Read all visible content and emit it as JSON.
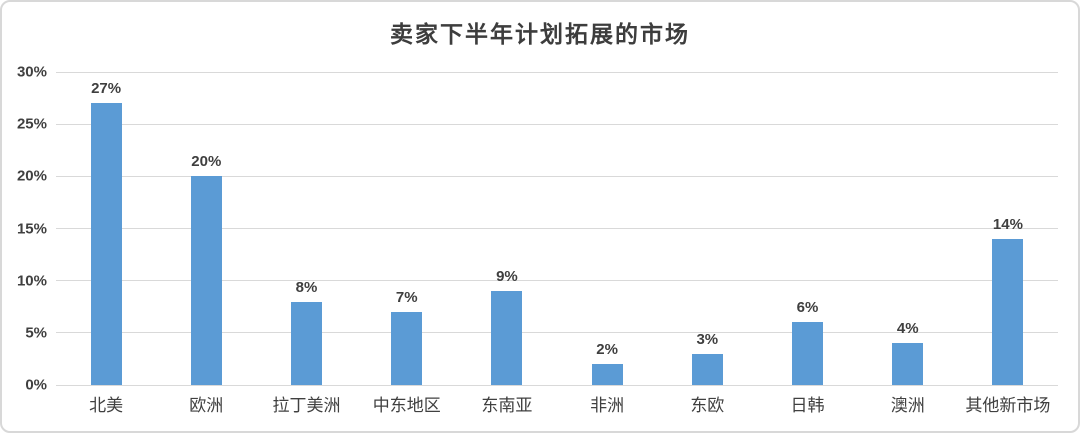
{
  "title": "卖家下半年计划拓展的市场",
  "chart_data": {
    "type": "bar",
    "title": "卖家下半年计划拓展的市场",
    "categories": [
      "北美",
      "欧洲",
      "拉丁美洲",
      "中东地区",
      "东南亚",
      "非洲",
      "东欧",
      "日韩",
      "澳洲",
      "其他新市场"
    ],
    "values": [
      27,
      20,
      8,
      7,
      9,
      2,
      3,
      6,
      4,
      14
    ],
    "data_labels": [
      "27%",
      "20%",
      "8%",
      "7%",
      "9%",
      "2%",
      "3%",
      "6%",
      "4%",
      "14%"
    ],
    "xlabel": "",
    "ylabel": "",
    "ylim": [
      0,
      30
    ],
    "yticks": [
      "0%",
      "5%",
      "10%",
      "15%",
      "20%",
      "25%",
      "30%"
    ],
    "grid": true,
    "legend": false,
    "colors": {
      "bar": "#5b9bd5",
      "gridline": "#d9d9d9",
      "text": "#404040",
      "border": "#d8d8d8"
    }
  }
}
